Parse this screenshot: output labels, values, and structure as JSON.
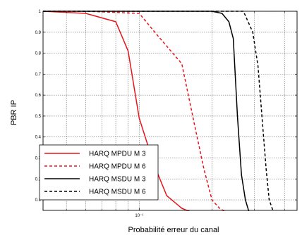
{
  "chart_data": {
    "type": "line",
    "xlabel": "Probabilité erreur du canal",
    "ylabel": "PBR IP",
    "x_scale": "log",
    "xlim": [
      0.04,
      0.45
    ],
    "ylim": [
      0.05,
      1.0
    ],
    "x_ticks": [
      {
        "value": 0.1,
        "label": "10⁻¹"
      }
    ],
    "y_ticks": [
      {
        "value": 0.1,
        "label": "0.1"
      },
      {
        "value": 0.2,
        "label": "0.2"
      },
      {
        "value": 0.3,
        "label": "0.3"
      },
      {
        "value": 0.4,
        "label": "0.4"
      },
      {
        "value": 0.5,
        "label": "0.5"
      },
      {
        "value": 0.6,
        "label": "0.6"
      },
      {
        "value": 0.7,
        "label": "0.7"
      },
      {
        "value": 0.8,
        "label": "0.8"
      },
      {
        "value": 0.9,
        "label": "0.9"
      },
      {
        "value": 1.0,
        "label": "1"
      }
    ],
    "x_gridlines": [
      0.04,
      0.05,
      0.06,
      0.07,
      0.08,
      0.09,
      0.1,
      0.2,
      0.3,
      0.4
    ],
    "grid": true,
    "legend_position": "bottom-left",
    "series": [
      {
        "name": "HARQ MPDU M 3",
        "color": "#e8141b",
        "dash": "solid",
        "x": [
          0.04,
          0.06,
          0.08,
          0.09,
          0.1,
          0.115,
          0.13,
          0.15,
          0.165
        ],
        "y": [
          1.0,
          0.99,
          0.95,
          0.81,
          0.49,
          0.27,
          0.12,
          0.06,
          0.04
        ]
      },
      {
        "name": "HARQ MPDU M 6",
        "color": "#e8141b",
        "dash": "dashed",
        "x": [
          0.04,
          0.06,
          0.1,
          0.12,
          0.15,
          0.17,
          0.185,
          0.2,
          0.215,
          0.23
        ],
        "y": [
          1.0,
          1.0,
          0.99,
          0.88,
          0.75,
          0.45,
          0.25,
          0.1,
          0.06,
          0.04
        ]
      },
      {
        "name": "HARQ MSDU M 3",
        "color": "#000000",
        "dash": "solid",
        "x": [
          0.04,
          0.1,
          0.2,
          0.22,
          0.235,
          0.245,
          0.255,
          0.265,
          0.275,
          0.285
        ],
        "y": [
          1.0,
          1.0,
          1.0,
          0.99,
          0.95,
          0.87,
          0.5,
          0.22,
          0.1,
          0.04
        ]
      },
      {
        "name": "HARQ MSDU M 6",
        "color": "#000000",
        "dash": "dashed",
        "x": [
          0.04,
          0.1,
          0.2,
          0.25,
          0.27,
          0.295,
          0.31,
          0.322,
          0.335,
          0.345,
          0.36
        ],
        "y": [
          1.0,
          1.0,
          1.0,
          1.0,
          1.0,
          0.9,
          0.74,
          0.5,
          0.25,
          0.1,
          0.04
        ]
      }
    ]
  }
}
